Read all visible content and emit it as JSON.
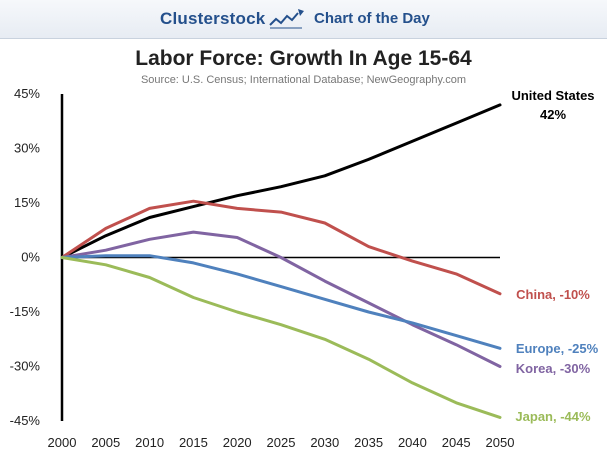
{
  "header": {
    "brand": "Clusterstock",
    "brand_icon": "rising-chart-icon",
    "section": "Chart of the Day"
  },
  "colors": {
    "header_text": "#24508c",
    "united_states": "#000000",
    "china": "#c0504d",
    "korea": "#8064a2",
    "europe": "#4f81bd",
    "japan": "#9bbb59"
  },
  "chart_data": {
    "type": "line",
    "title": "Labor Force: Growth In Age 15-64",
    "subtitle": "Source: U.S. Census; International Database; NewGeography.com",
    "xlabel": "",
    "ylabel": "",
    "x": [
      2000,
      2005,
      2010,
      2015,
      2020,
      2025,
      2030,
      2035,
      2040,
      2045,
      2050
    ],
    "x_tick_labels": [
      "2000",
      "2005",
      "2010",
      "2015",
      "2020",
      "2025",
      "2030",
      "2035",
      "2040",
      "2045",
      "2050"
    ],
    "xlim": [
      2000,
      2050
    ],
    "ylim": [
      -45,
      45
    ],
    "y_ticks": [
      45,
      30,
      15,
      0,
      -15,
      -30,
      -45
    ],
    "y_tick_labels": [
      "45%",
      "30%",
      "15%",
      "0%",
      "-15%",
      "-30%",
      "-45%"
    ],
    "grid": false,
    "legend": "none",
    "series": [
      {
        "key": "united_states",
        "label_line1": "United States",
        "label_line2": "42%",
        "values": [
          0,
          6,
          11,
          14,
          17,
          19.5,
          22.5,
          27,
          32,
          37,
          42
        ]
      },
      {
        "key": "china",
        "label_line1": "China, -10%",
        "label_line2": "",
        "values": [
          0,
          8,
          13.5,
          15.5,
          13.5,
          12.5,
          9.5,
          3,
          -1,
          -4.5,
          -10
        ]
      },
      {
        "key": "korea",
        "label_line1": "Korea, -30%",
        "label_line2": "",
        "values": [
          0,
          2,
          5,
          7,
          5.5,
          0,
          -6.5,
          -12.5,
          -18.5,
          -24,
          -30
        ]
      },
      {
        "key": "europe",
        "label_line1": "Europe, -25%",
        "label_line2": "",
        "values": [
          0,
          0.5,
          0.5,
          -1.5,
          -4.5,
          -8,
          -11.5,
          -15,
          -18,
          -21.5,
          -25
        ]
      },
      {
        "key": "japan",
        "label_line1": "Japan, -44%",
        "label_line2": "",
        "values": [
          0,
          -2,
          -5.5,
          -11,
          -15,
          -18.5,
          -22.5,
          -28,
          -34.5,
          -40,
          -44
        ]
      }
    ]
  }
}
